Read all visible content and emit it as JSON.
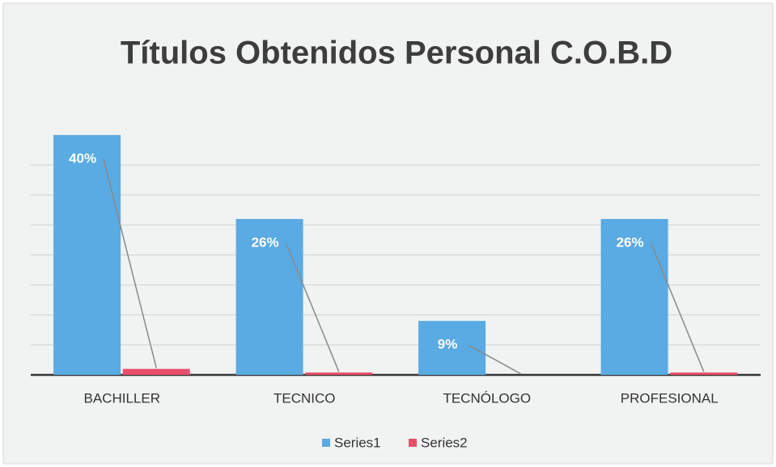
{
  "chart_data": {
    "type": "bar",
    "title": "Títulos Obtenidos Personal C.O.B.D",
    "categories": [
      "BACHILLER",
      "TECNICO",
      "TECNÓLOGO",
      "PROFESIONAL"
    ],
    "series": [
      {
        "name": "Series1",
        "color": "#5aaae3",
        "values": [
          40,
          26,
          9,
          26
        ],
        "value_labels": [
          "40%",
          "26%",
          "9%",
          "26%"
        ]
      },
      {
        "name": "Series2",
        "color": "#e8506a",
        "values": [
          1,
          0.4,
          0,
          0.4
        ]
      }
    ],
    "ylim": [
      0,
      45
    ],
    "yticks": [
      0,
      5,
      10,
      15,
      20,
      25,
      30,
      35
    ],
    "grid": true,
    "legend": "bottom"
  }
}
